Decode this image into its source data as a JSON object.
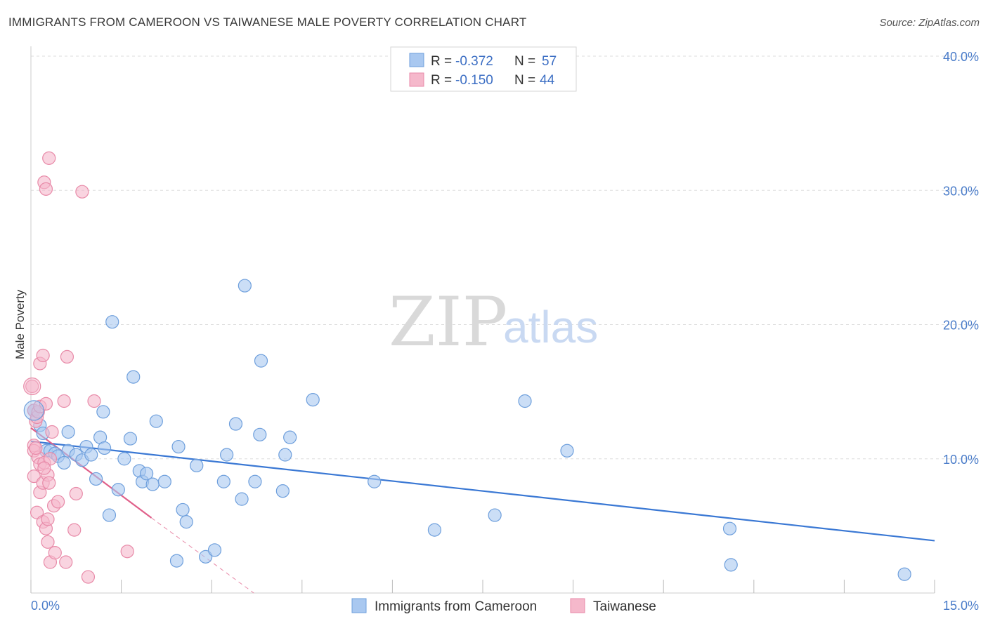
{
  "title": "IMMIGRANTS FROM CAMEROON VS TAIWANESE MALE POVERTY CORRELATION CHART",
  "source": "Source: ZipAtlas.com",
  "watermark": {
    "zip": "ZIP",
    "atlas": "atlas"
  },
  "colors": {
    "blue_fill": "#a9c8f0",
    "blue_stroke": "#6e9fdc",
    "blue_line": "#3a78d4",
    "pink_fill": "#f5b8cb",
    "pink_stroke": "#e88aa8",
    "pink_line": "#e0608a",
    "grid": "#dddddd",
    "axis_text": "#4a7cc9"
  },
  "stats": [
    {
      "r_label": "R =",
      "r_value": "-0.372",
      "n_label": "N =",
      "n_value": "57"
    },
    {
      "r_label": "R =",
      "r_value": "-0.150",
      "n_label": "N =",
      "n_value": "44"
    }
  ],
  "legend": [
    "Immigrants from Cameroon",
    "Taiwanese"
  ],
  "chart_data": {
    "type": "scatter",
    "xlabel": "",
    "ylabel": "Male Poverty",
    "xlim": [
      0,
      15
    ],
    "ylim": [
      0,
      40
    ],
    "x_tick_labels": [
      "0.0%",
      "15.0%"
    ],
    "y_ticks": [
      10,
      20,
      30,
      40
    ],
    "y_tick_labels": [
      "10.0%",
      "20.0%",
      "30.0%",
      "40.0%"
    ],
    "grid": true,
    "series": [
      {
        "name": "Immigrants from Cameroon",
        "color": "#a9c8f0",
        "trend": {
          "x": [
            0.0,
            15.0
          ],
          "y": [
            11.3,
            3.9
          ]
        },
        "points": [
          [
            0.05,
            13.6
          ],
          [
            0.15,
            12.5
          ],
          [
            0.2,
            11.9
          ],
          [
            0.25,
            10.6
          ],
          [
            0.32,
            10.6
          ],
          [
            0.4,
            10.4
          ],
          [
            0.45,
            10.2
          ],
          [
            0.55,
            9.7
          ],
          [
            0.62,
            12.0
          ],
          [
            0.62,
            10.6
          ],
          [
            0.75,
            10.3
          ],
          [
            0.85,
            9.9
          ],
          [
            0.92,
            10.9
          ],
          [
            1.0,
            10.3
          ],
          [
            1.08,
            8.5
          ],
          [
            1.15,
            11.6
          ],
          [
            1.2,
            13.5
          ],
          [
            1.22,
            10.8
          ],
          [
            1.3,
            5.8
          ],
          [
            1.35,
            20.2
          ],
          [
            1.45,
            7.7
          ],
          [
            1.55,
            10.0
          ],
          [
            1.65,
            11.5
          ],
          [
            1.7,
            16.1
          ],
          [
            1.8,
            9.1
          ],
          [
            1.85,
            8.3
          ],
          [
            1.92,
            8.9
          ],
          [
            2.02,
            8.1
          ],
          [
            2.08,
            12.8
          ],
          [
            2.22,
            8.3
          ],
          [
            2.45,
            10.9
          ],
          [
            2.52,
            6.2
          ],
          [
            2.58,
            5.3
          ],
          [
            2.42,
            2.4
          ],
          [
            2.75,
            9.5
          ],
          [
            2.9,
            2.7
          ],
          [
            3.05,
            3.2
          ],
          [
            3.2,
            8.3
          ],
          [
            3.25,
            10.3
          ],
          [
            3.4,
            12.6
          ],
          [
            3.5,
            7.0
          ],
          [
            3.55,
            22.9
          ],
          [
            3.72,
            8.3
          ],
          [
            3.8,
            11.8
          ],
          [
            3.82,
            17.3
          ],
          [
            4.18,
            7.6
          ],
          [
            4.22,
            10.3
          ],
          [
            4.3,
            11.6
          ],
          [
            4.68,
            14.4
          ],
          [
            5.7,
            8.3
          ],
          [
            6.7,
            4.7
          ],
          [
            7.7,
            5.8
          ],
          [
            8.2,
            14.3
          ],
          [
            8.9,
            10.6
          ],
          [
            11.6,
            4.8
          ],
          [
            11.62,
            2.1
          ],
          [
            14.5,
            1.4
          ]
        ]
      },
      {
        "name": "Taiwanese",
        "color": "#f5b8cb",
        "trend": {
          "x": [
            0.0,
            2.0
          ],
          "y": [
            12.3,
            5.6
          ]
        },
        "trend_extension": {
          "x": [
            2.0,
            3.7
          ],
          "y": [
            5.6,
            0.0
          ]
        },
        "points": [
          [
            0.02,
            15.4
          ],
          [
            0.05,
            13.6
          ],
          [
            0.05,
            11.0
          ],
          [
            0.05,
            10.6
          ],
          [
            0.05,
            8.7
          ],
          [
            0.08,
            12.8
          ],
          [
            0.1,
            13.1
          ],
          [
            0.12,
            13.5
          ],
          [
            0.12,
            10.1
          ],
          [
            0.15,
            13.9
          ],
          [
            0.15,
            9.6
          ],
          [
            0.1,
            6.0
          ],
          [
            0.15,
            17.1
          ],
          [
            0.15,
            7.5
          ],
          [
            0.2,
            8.2
          ],
          [
            0.2,
            5.3
          ],
          [
            0.22,
            30.6
          ],
          [
            0.22,
            9.7
          ],
          [
            0.2,
            17.7
          ],
          [
            0.25,
            4.8
          ],
          [
            0.25,
            14.1
          ],
          [
            0.28,
            8.8
          ],
          [
            0.28,
            5.5
          ],
          [
            0.25,
            30.1
          ],
          [
            0.3,
            8.2
          ],
          [
            0.28,
            3.8
          ],
          [
            0.3,
            32.4
          ],
          [
            0.32,
            10.0
          ],
          [
            0.32,
            2.3
          ],
          [
            0.38,
            6.5
          ],
          [
            0.4,
            3.0
          ],
          [
            0.45,
            6.8
          ],
          [
            0.55,
            14.3
          ],
          [
            0.58,
            2.3
          ],
          [
            0.6,
            17.6
          ],
          [
            0.72,
            4.7
          ],
          [
            0.75,
            7.4
          ],
          [
            0.85,
            29.9
          ],
          [
            0.95,
            1.2
          ],
          [
            1.05,
            14.3
          ],
          [
            1.6,
            3.1
          ],
          [
            0.22,
            9.3
          ],
          [
            0.35,
            12.0
          ],
          [
            0.08,
            10.8
          ]
        ]
      }
    ]
  }
}
